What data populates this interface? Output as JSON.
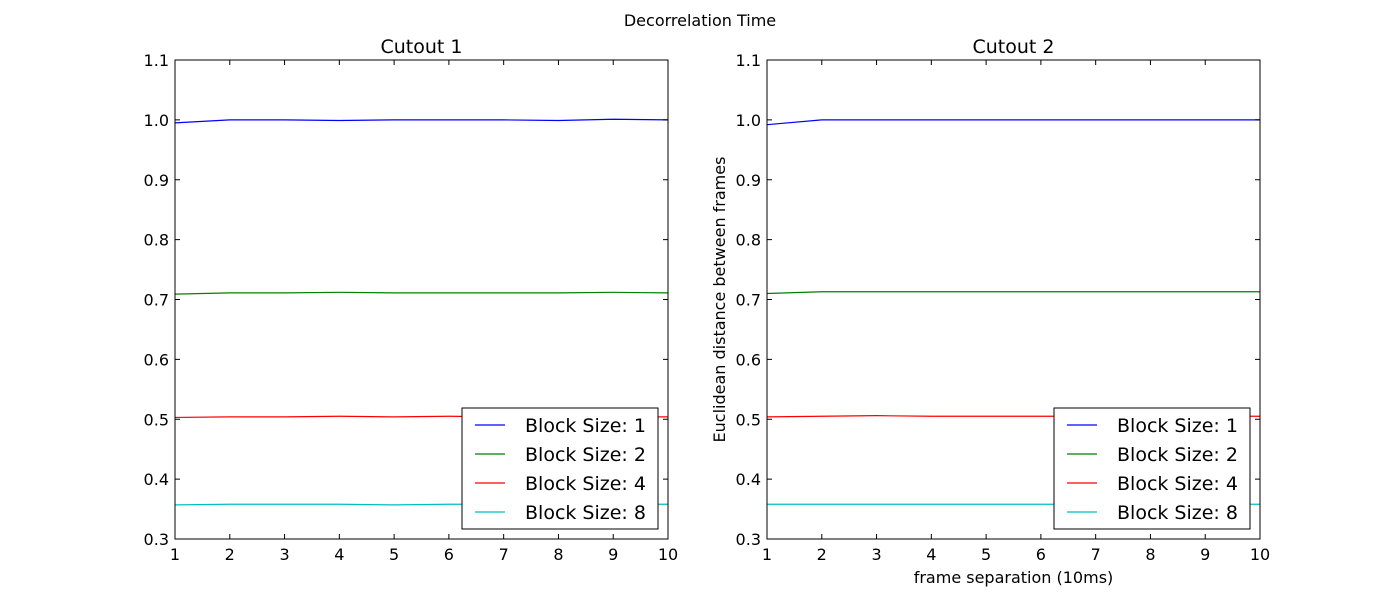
{
  "figure": {
    "suptitle": "Decorrelation Time"
  },
  "chart_data": [
    {
      "type": "line",
      "title": "Cutout 1",
      "xlabel": "",
      "ylabel": "",
      "xlim": [
        1,
        10
      ],
      "ylim": [
        0.3,
        1.1
      ],
      "xticks": [
        "1",
        "2",
        "3",
        "4",
        "5",
        "6",
        "7",
        "8",
        "9",
        "10"
      ],
      "yticks": [
        "0.3",
        "0.4",
        "0.5",
        "0.6",
        "0.7",
        "0.8",
        "0.9",
        "1.0",
        "1.1"
      ],
      "grid": false,
      "legend_position": "lower-right",
      "x": [
        1,
        2,
        3,
        4,
        5,
        6,
        7,
        8,
        9,
        10
      ],
      "series": [
        {
          "name": "Block Size: 1",
          "color": "#0000ff",
          "values": [
            0.995,
            1.0,
            1.0,
            0.999,
            1.0,
            1.0,
            1.0,
            0.999,
            1.001,
            1.0
          ]
        },
        {
          "name": "Block Size: 2",
          "color": "#008000",
          "values": [
            0.709,
            0.711,
            0.711,
            0.712,
            0.711,
            0.711,
            0.711,
            0.711,
            0.712,
            0.711
          ]
        },
        {
          "name": "Block Size: 4",
          "color": "#ff0000",
          "values": [
            0.503,
            0.504,
            0.504,
            0.505,
            0.504,
            0.505,
            0.504,
            0.505,
            0.504,
            0.504
          ]
        },
        {
          "name": "Block Size: 8",
          "color": "#00bfbf",
          "values": [
            0.357,
            0.358,
            0.358,
            0.358,
            0.357,
            0.358,
            0.358,
            0.358,
            0.358,
            0.358
          ]
        }
      ]
    },
    {
      "type": "line",
      "title": "Cutout 2",
      "xlabel": "frame separation (10ms)",
      "ylabel": "Euclidean distance between frames",
      "xlim": [
        1,
        10
      ],
      "ylim": [
        0.3,
        1.1
      ],
      "xticks": [
        "1",
        "2",
        "3",
        "4",
        "5",
        "6",
        "7",
        "8",
        "9",
        "10"
      ],
      "yticks": [
        "0.3",
        "0.4",
        "0.5",
        "0.6",
        "0.7",
        "0.8",
        "0.9",
        "1.0",
        "1.1"
      ],
      "grid": false,
      "legend_position": "lower-right",
      "x": [
        1,
        2,
        3,
        4,
        5,
        6,
        7,
        8,
        9,
        10
      ],
      "series": [
        {
          "name": "Block Size: 1",
          "color": "#0000ff",
          "values": [
            0.992,
            1.0,
            1.0,
            1.0,
            1.0,
            1.0,
            1.0,
            1.0,
            1.0,
            1.0
          ]
        },
        {
          "name": "Block Size: 2",
          "color": "#008000",
          "values": [
            0.71,
            0.713,
            0.713,
            0.713,
            0.713,
            0.713,
            0.713,
            0.713,
            0.713,
            0.713
          ]
        },
        {
          "name": "Block Size: 4",
          "color": "#ff0000",
          "values": [
            0.504,
            0.505,
            0.506,
            0.505,
            0.505,
            0.505,
            0.505,
            0.505,
            0.505,
            0.505
          ]
        },
        {
          "name": "Block Size: 8",
          "color": "#00bfbf",
          "values": [
            0.358,
            0.358,
            0.358,
            0.358,
            0.358,
            0.358,
            0.358,
            0.358,
            0.358,
            0.358
          ]
        }
      ]
    }
  ]
}
